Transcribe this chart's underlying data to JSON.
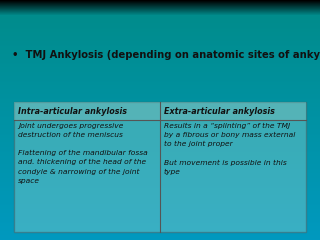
{
  "title": "•  TMJ Ankylosis (depending on anatomic sites of ankylosis)",
  "title_color": "#111111",
  "title_fontsize": 7.2,
  "col1_header": "Intra-articular ankylosis",
  "col2_header": "Extra-articular ankylosis",
  "col1_body": "Joint undergoes progressive\ndestruction of the meniscus\n\nFlattening of the mandibular fossa\nand. thickening of the head of the\ncondyle & narrowing of the joint\nspace",
  "col2_body": "Results in a “splinting” of the TMJ\nby a fibrous or bony mass external\nto the joint proper\n\nBut movement is possible in this\ntype",
  "header_fontsize": 5.8,
  "body_fontsize": 5.4,
  "text_color": "#111111",
  "table_border": "#555555",
  "grad_top": "#000000",
  "grad_mid": "#009999",
  "grad_bottom": "#00AACC"
}
